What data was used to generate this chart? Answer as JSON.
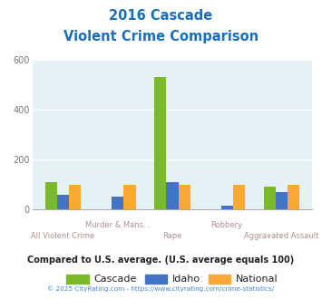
{
  "title_line1": "2016 Cascade",
  "title_line2": "Violent Crime Comparison",
  "categories": [
    "All Violent Crime",
    "Murder & Mans...",
    "Rape",
    "Robbery",
    "Aggravated Assault"
  ],
  "cascade": [
    110,
    0,
    530,
    0,
    90
  ],
  "idaho": [
    60,
    50,
    110,
    13,
    68
  ],
  "national": [
    100,
    100,
    100,
    100,
    100
  ],
  "cascade_color": "#7aba28",
  "idaho_color": "#4472c4",
  "national_color": "#faa932",
  "bg_color": "#e5f2f5",
  "ylim": [
    0,
    600
  ],
  "yticks": [
    0,
    200,
    400,
    600
  ],
  "footer_note": "Compared to U.S. average. (U.S. average equals 100)",
  "copyright": "© 2025 CityRating.com - https://www.cityrating.com/crime-statistics/",
  "title_color": "#1a6fba",
  "xlabel_color_even": "#b09090",
  "xlabel_color_odd": "#b09090",
  "footer_color": "#222222",
  "copyright_color": "#4488cc",
  "legend_text_color": "#222222"
}
